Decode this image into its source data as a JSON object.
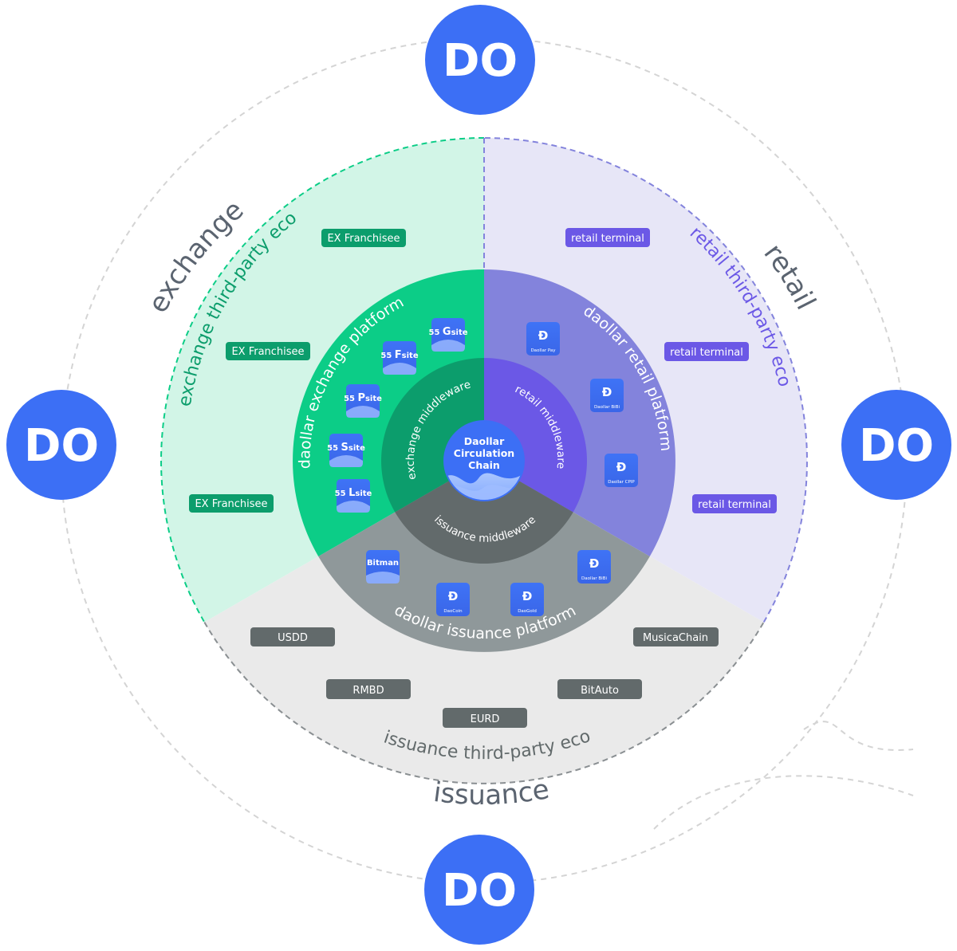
{
  "colors": {
    "exchange": "#0ccd87",
    "exchange_light": "#d2f5e7",
    "exchange_dark": "#0c9d6c",
    "retail": "#8383dc",
    "retail_light": "#e7e6f7",
    "retail_dark": "#6b58e6",
    "issuance": "#8f989a",
    "issuance_light": "#eaeaea",
    "issuance_dark": "#626a6b",
    "brand_blue": "#3c6ff5"
  },
  "nodes": {
    "label": "DO"
  },
  "sectors": {
    "exchange": {
      "title": "exchange",
      "eco": "exchange third-party eco",
      "platform": "daollar exchange platform",
      "middleware": "exchange middleware",
      "chips": [
        "EX Franchisee",
        "EX Franchisee",
        "EX Franchisee"
      ],
      "sites": [
        {
          "num": "55",
          "letter": "G",
          "label": "site"
        },
        {
          "num": "55",
          "letter": "F",
          "label": "site"
        },
        {
          "num": "55",
          "letter": "P",
          "label": "site"
        },
        {
          "num": "55",
          "letter": "S",
          "label": "site"
        },
        {
          "num": "55",
          "letter": "L",
          "label": "site"
        }
      ]
    },
    "retail": {
      "title": "retail",
      "eco": "retail third-party eco",
      "platform": "daollar retail platform",
      "middleware": "retail middleware",
      "chips": [
        "retail terminal",
        "retail terminal",
        "retail terminal"
      ],
      "apps": [
        "Daollar Pay",
        "Daollar BiBi",
        "Daollar CPIP"
      ]
    },
    "issuance": {
      "title": "issuance",
      "eco": "issuance third-party eco",
      "platform": "daollar issuance platform",
      "middleware": "issuance middleware",
      "chips": [
        "USDD",
        "MusicaChain",
        "RMBD",
        "BitAuto",
        "EURD"
      ],
      "apps": [
        "Bitman",
        "DaoCoin",
        "DaoGold",
        "Daollar BiBi"
      ]
    }
  },
  "core": {
    "line1": "Daollar",
    "line2": "Circulation",
    "line3": "Chain"
  }
}
